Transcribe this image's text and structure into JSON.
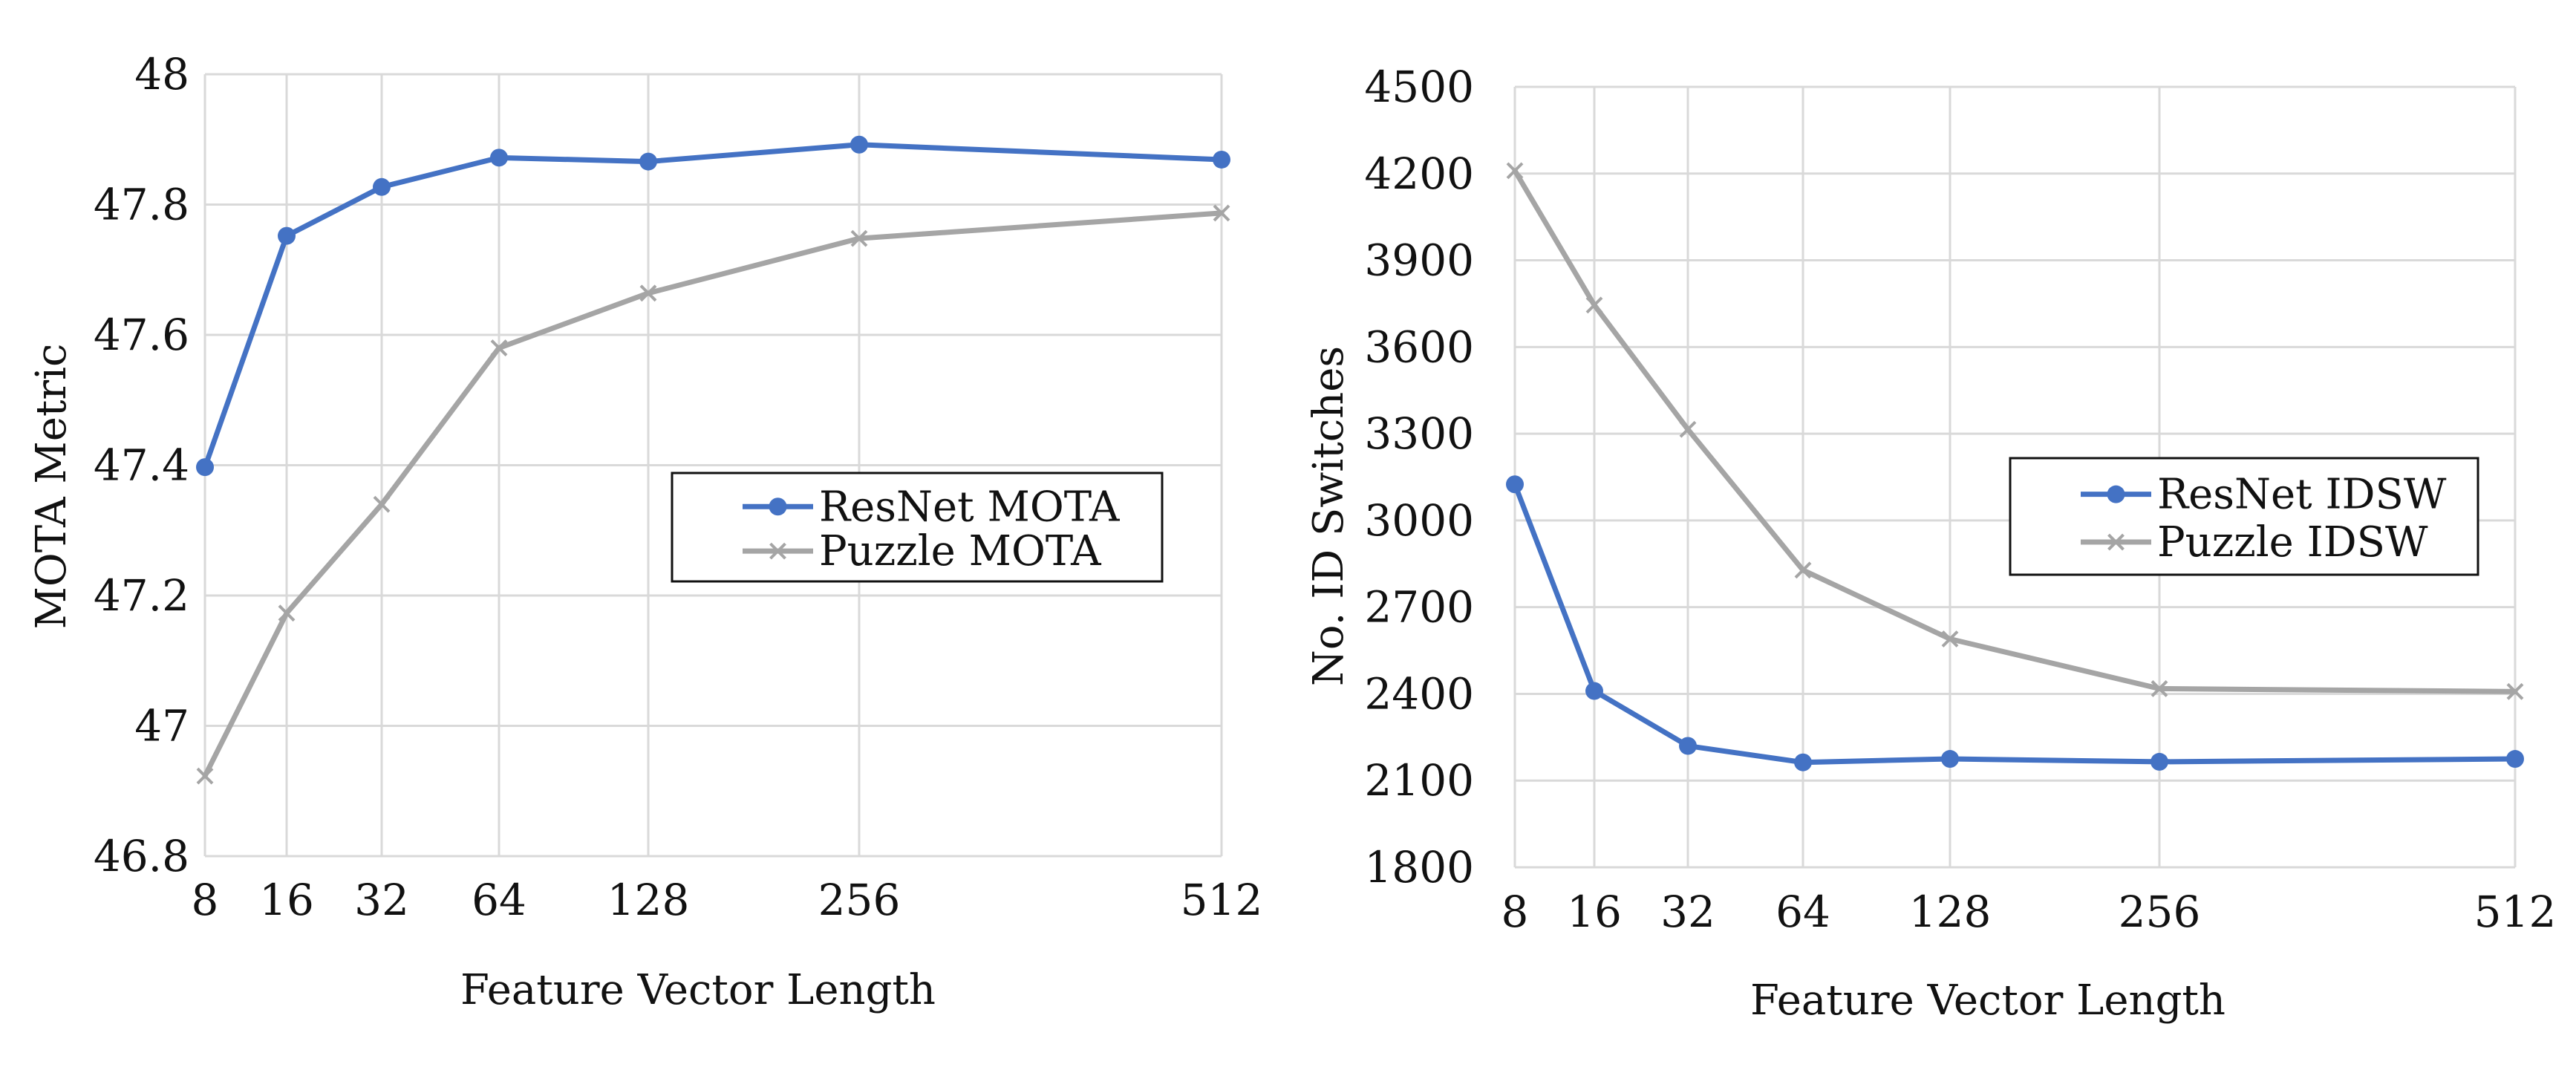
{
  "chart_data": [
    {
      "type": "line",
      "title": "",
      "xlabel": "Feature Vector Length",
      "ylabel": "MOTA Metric",
      "x": [
        8,
        16,
        32,
        64,
        128,
        256,
        512
      ],
      "x_tick_labels": [
        "8",
        "16",
        "32",
        "64",
        "128",
        "256",
        "512"
      ],
      "x_scale": "log2",
      "ylim": [
        46.8,
        48
      ],
      "y_ticks": [
        46.8,
        47,
        47.2,
        47.4,
        47.6,
        47.8,
        48
      ],
      "y_tick_labels": [
        "46.8",
        "47",
        "47.2",
        "47.4",
        "47.6",
        "47.8",
        "48"
      ],
      "grid": true,
      "legend_position": "center-right",
      "series": [
        {
          "name": "ResNet MOTA",
          "values": [
            47.397,
            47.752,
            47.827,
            47.872,
            47.866,
            47.892,
            47.869
          ],
          "color": "#4472c4",
          "marker": "circle"
        },
        {
          "name": "Puzzle MOTA",
          "values": [
            46.923,
            47.173,
            47.34,
            47.58,
            47.664,
            47.748,
            47.787
          ],
          "color": "#a5a5a5",
          "marker": "x"
        }
      ]
    },
    {
      "type": "line",
      "title": "",
      "xlabel": "Feature Vector Length",
      "ylabel": "No. ID Switches",
      "x": [
        8,
        16,
        32,
        64,
        128,
        256,
        512
      ],
      "x_tick_labels": [
        "8",
        "16",
        "32",
        "64",
        "128",
        "256",
        "512"
      ],
      "x_scale": "log2",
      "ylim": [
        1800,
        4500
      ],
      "y_ticks": [
        1800,
        2100,
        2400,
        2700,
        3000,
        3300,
        3600,
        3900,
        4200,
        4500
      ],
      "y_tick_labels": [
        "1800",
        "2100",
        "2400",
        "2700",
        "3000",
        "3300",
        "3600",
        "3900",
        "4200",
        "4500"
      ],
      "grid": true,
      "legend_position": "center-right",
      "series": [
        {
          "name": "ResNet IDSW",
          "values": [
            3125,
            2410,
            2220,
            2163,
            2175,
            2165,
            2175
          ],
          "color": "#4472c4",
          "marker": "circle"
        },
        {
          "name": "Puzzle IDSW",
          "values": [
            4210,
            3745,
            3315,
            2828,
            2590,
            2418,
            2408
          ],
          "color": "#a5a5a5",
          "marker": "x"
        }
      ]
    }
  ]
}
